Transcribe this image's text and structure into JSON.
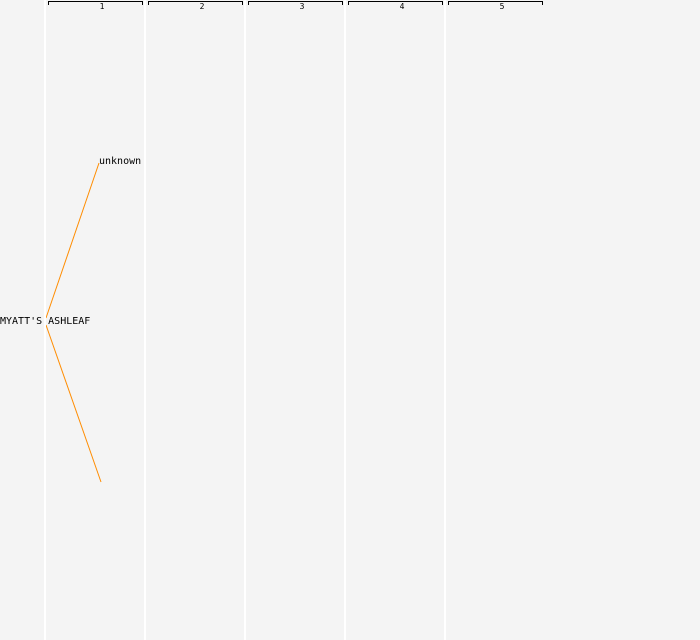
{
  "generations": [
    "1",
    "2",
    "3",
    "4",
    "5"
  ],
  "root": {
    "name": "MYATT'S ASHLEAF"
  },
  "parents": [
    {
      "name": "unknown"
    },
    {
      "name": ""
    }
  ],
  "colors": {
    "link": "#ff8c00",
    "background": "#f4f4f4",
    "divider": "#ffffff"
  }
}
